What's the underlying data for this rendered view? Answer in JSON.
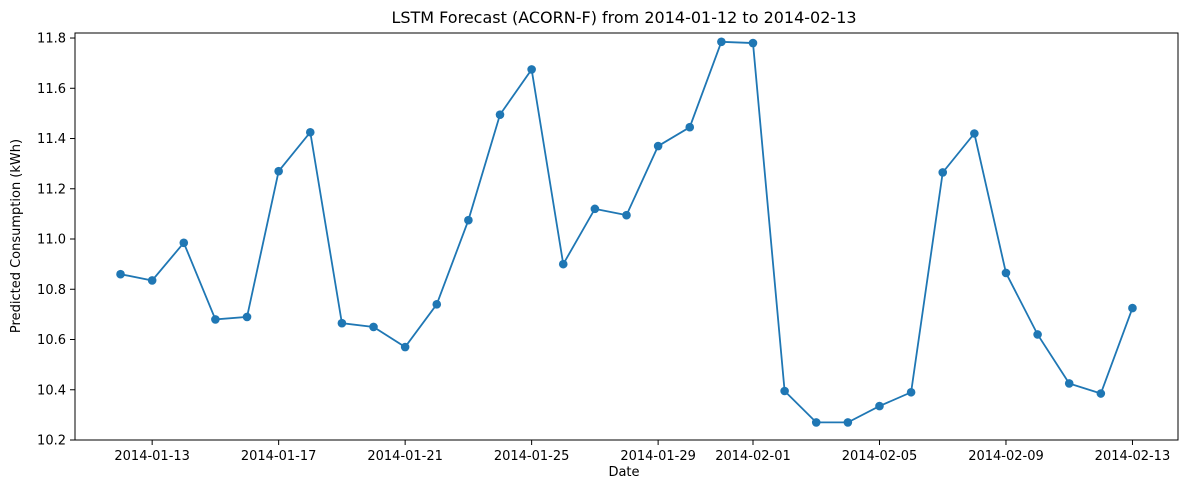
{
  "chart_data": {
    "type": "line",
    "title": "LSTM Forecast (ACORN-F) from 2014-01-12 to 2014-02-13",
    "xlabel": "Date",
    "ylabel": "Predicted Consumption (kWh)",
    "x_start": "2014-01-12",
    "x": [
      "2014-01-12",
      "2014-01-13",
      "2014-01-14",
      "2014-01-15",
      "2014-01-16",
      "2014-01-17",
      "2014-01-18",
      "2014-01-19",
      "2014-01-20",
      "2014-01-21",
      "2014-01-22",
      "2014-01-23",
      "2014-01-24",
      "2014-01-25",
      "2014-01-26",
      "2014-01-27",
      "2014-01-28",
      "2014-01-29",
      "2014-01-30",
      "2014-01-31",
      "2014-02-01",
      "2014-02-02",
      "2014-02-03",
      "2014-02-04",
      "2014-02-05",
      "2014-02-06",
      "2014-02-07",
      "2014-02-08",
      "2014-02-09",
      "2014-02-10",
      "2014-02-11",
      "2014-02-12",
      "2014-02-13"
    ],
    "series": [
      {
        "color": "#1f77b4",
        "values": [
          10.86,
          10.835,
          10.985,
          10.68,
          10.69,
          11.27,
          11.425,
          10.665,
          10.65,
          10.57,
          10.74,
          11.075,
          11.495,
          11.675,
          10.9,
          11.12,
          11.095,
          11.37,
          11.445,
          11.785,
          11.78,
          10.395,
          10.27,
          10.27,
          10.335,
          10.39,
          11.265,
          11.42,
          10.865,
          10.62,
          10.425,
          10.385,
          10.725
        ]
      }
    ],
    "x_ticks": [
      "2014-01-13",
      "2014-01-17",
      "2014-01-21",
      "2014-01-25",
      "2014-01-29",
      "2014-02-01",
      "2014-02-05",
      "2014-02-09",
      "2014-02-13"
    ],
    "y_ticks": [
      "10.2",
      "10.4",
      "10.6",
      "10.8",
      "11.0",
      "11.2",
      "11.4",
      "11.6",
      "11.8"
    ],
    "ylim": [
      10.2,
      11.82
    ],
    "grid": false
  }
}
